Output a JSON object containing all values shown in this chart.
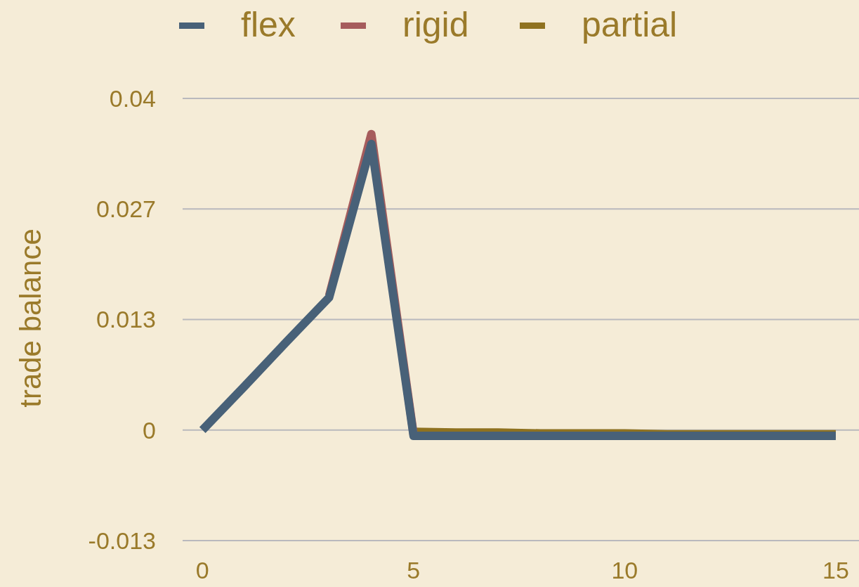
{
  "chart_data": {
    "type": "line",
    "ylabel": "trade balance",
    "x": [
      0,
      1,
      2,
      3,
      4,
      5,
      6,
      7,
      8,
      9,
      10,
      11,
      12,
      13,
      14,
      15
    ],
    "series": [
      {
        "name": "flex",
        "color": "#486178",
        "values": [
          0,
          0.0053,
          0.0107,
          0.016,
          0.0345,
          -0.0007,
          -0.0007,
          -0.0007,
          -0.0007,
          -0.0007,
          -0.0007,
          -0.0007,
          -0.0007,
          -0.0007,
          -0.0007,
          -0.0007
        ]
      },
      {
        "name": "rigid",
        "color": "#a65c5c",
        "values": [
          null,
          null,
          null,
          0.0162,
          0.0357,
          -0.0005,
          null,
          null,
          null,
          null,
          null,
          null,
          null,
          null,
          null,
          null
        ]
      },
      {
        "name": "partial",
        "color": "#8f7220",
        "values": [
          null,
          null,
          null,
          null,
          null,
          -0.0002,
          -0.0003,
          -0.0003,
          -0.0004,
          -0.0004,
          -0.0004,
          -0.0005,
          -0.0005,
          -0.0005,
          -0.0005,
          -0.0005
        ]
      }
    ],
    "xlim": [
      -0.47,
      15.55
    ],
    "xticks": [
      0,
      5,
      10,
      15
    ],
    "ylim": [
      -0.01333,
      0.04
    ],
    "yticks": [
      {
        "value": -0.01333,
        "label": "-0.013"
      },
      0,
      {
        "value": 0.01333,
        "label": "0.013"
      },
      {
        "value": 0.02667,
        "label": "0.027"
      },
      0.04
    ],
    "grid": "y",
    "legend": "top",
    "line_style": "solid",
    "marker": "none"
  }
}
